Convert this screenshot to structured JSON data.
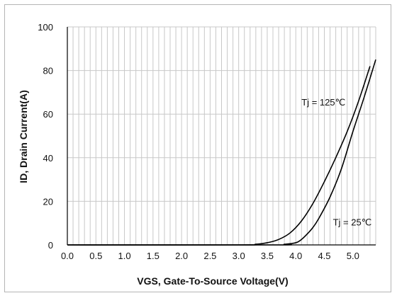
{
  "chart_data": {
    "type": "line",
    "title": "",
    "xlabel": "VGS,  Gate-To-Source Voltage(V)",
    "ylabel": "ID, Drain Current(A)",
    "xlim": [
      0,
      5.4
    ],
    "ylim": [
      0,
      100
    ],
    "x_ticks": [
      "0.0",
      "0.5",
      "1.0",
      "1.5",
      "2.0",
      "2.5",
      "3.0",
      "3.5",
      "4.0",
      "4.5",
      "5.0"
    ],
    "y_ticks": [
      "0",
      "20",
      "40",
      "60",
      "80",
      "100"
    ],
    "grid": true,
    "series": [
      {
        "name": "Tj = 125℃",
        "color": "#000000",
        "x": [
          0,
          3.0,
          3.3,
          3.5,
          3.7,
          3.9,
          4.1,
          4.3,
          4.5,
          4.7,
          4.9,
          5.1,
          5.3
        ],
        "y": [
          0,
          0,
          0.3,
          1,
          2.5,
          5.5,
          11,
          19,
          29,
          40,
          52,
          66,
          82
        ]
      },
      {
        "name": "Tj = 25℃",
        "color": "#000000",
        "x": [
          0,
          3.6,
          3.8,
          4.0,
          4.1,
          4.2,
          4.3,
          4.4,
          4.6,
          4.8,
          5.0,
          5.2,
          5.4
        ],
        "y": [
          0,
          0,
          0.3,
          1,
          2.5,
          5,
          8,
          12,
          22,
          35,
          52,
          68,
          85
        ]
      }
    ],
    "annotations": [
      {
        "text": "Tj = 125℃",
        "x": 4.1,
        "y": 64
      },
      {
        "text": "Tj = 25℃",
        "x": 4.65,
        "y": 9
      }
    ]
  }
}
